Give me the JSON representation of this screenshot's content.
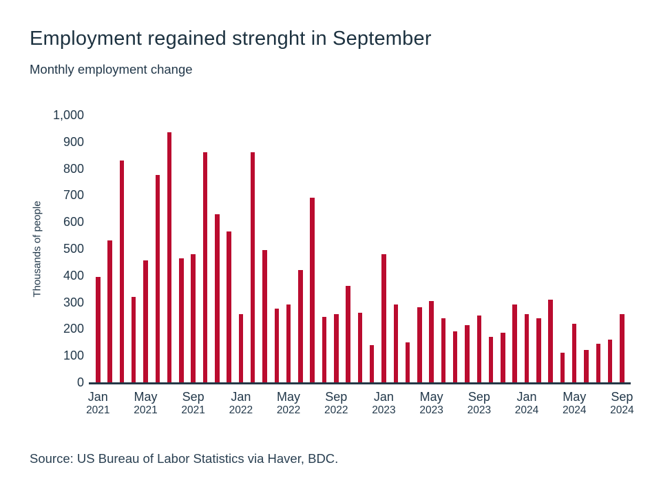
{
  "header": {
    "title": "Employment regained strenght in September",
    "subtitle": "Monthly employment change"
  },
  "source": "Source: US Bureau of Labor Statistics via Haver, BDC.",
  "colors": {
    "bar": "#ba0c2f",
    "text": "#22384a",
    "axis_line": "#243746",
    "background": "#ffffff"
  },
  "chart_data": {
    "type": "bar",
    "title": "Employment regained strenght in September",
    "subtitle": "Monthly employment change",
    "xlabel": "",
    "ylabel": "Thousands of people",
    "ylim": [
      0,
      1000
    ],
    "grid": false,
    "legend": false,
    "yticks": [
      0,
      100,
      200,
      300,
      400,
      500,
      600,
      700,
      800,
      900,
      1000
    ],
    "ytick_labels": [
      "0",
      "100",
      "200",
      "300",
      "400",
      "500",
      "600",
      "700",
      "800",
      "900",
      "1,000"
    ],
    "x": [
      "Jan 2021",
      "Feb 2021",
      "Mar 2021",
      "Apr 2021",
      "May 2021",
      "Jun 2021",
      "Jul 2021",
      "Aug 2021",
      "Sep 2021",
      "Oct 2021",
      "Nov 2021",
      "Dec 2021",
      "Jan 2022",
      "Feb 2022",
      "Mar 2022",
      "Apr 2022",
      "May 2022",
      "Jun 2022",
      "Jul 2022",
      "Aug 2022",
      "Sep 2022",
      "Oct 2022",
      "Nov 2022",
      "Dec 2022",
      "Jan 2023",
      "Feb 2023",
      "Mar 2023",
      "Apr 2023",
      "May 2023",
      "Jun 2023",
      "Jul 2023",
      "Aug 2023",
      "Sep 2023",
      "Oct 2023",
      "Nov 2023",
      "Dec 2023",
      "Jan 2024",
      "Feb 2024",
      "Mar 2024",
      "Apr 2024",
      "May 2024",
      "Jun 2024",
      "Jul 2024",
      "Aug 2024",
      "Sep 2024"
    ],
    "values": [
      395,
      530,
      830,
      320,
      455,
      775,
      935,
      465,
      480,
      860,
      630,
      565,
      255,
      860,
      495,
      275,
      290,
      420,
      690,
      245,
      255,
      360,
      260,
      140,
      480,
      290,
      150,
      280,
      305,
      240,
      190,
      215,
      250,
      170,
      185,
      290,
      255,
      240,
      310,
      110,
      220,
      120,
      145,
      160,
      255
    ],
    "xtick_indices": [
      0,
      4,
      8,
      12,
      16,
      20,
      24,
      28,
      32,
      36,
      40,
      44
    ],
    "xtick_labels": [
      {
        "month": "Jan",
        "year": "2021"
      },
      {
        "month": "May",
        "year": "2021"
      },
      {
        "month": "Sep",
        "year": "2021"
      },
      {
        "month": "Jan",
        "year": "2022"
      },
      {
        "month": "May",
        "year": "2022"
      },
      {
        "month": "Sep",
        "year": "2022"
      },
      {
        "month": "Jan",
        "year": "2023"
      },
      {
        "month": "May",
        "year": "2023"
      },
      {
        "month": "Sep",
        "year": "2023"
      },
      {
        "month": "Jan",
        "year": "2024"
      },
      {
        "month": "May",
        "year": "2024"
      },
      {
        "month": "Sep",
        "year": "2024"
      }
    ]
  }
}
